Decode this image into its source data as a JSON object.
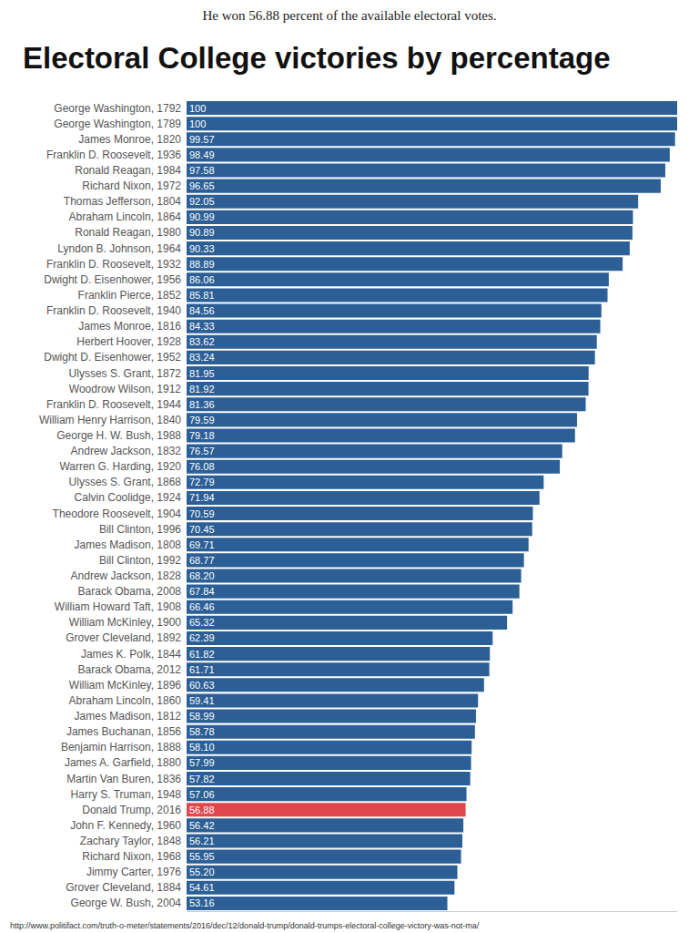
{
  "chart_data": {
    "type": "bar",
    "title": "Electoral College victories by percentage",
    "annotations": [
      "He won 56.88 percent of the available electoral votes.",
      "http://www.politifact.com/truth-o-meter/statements/2016/dec/12/donald-trump/donald-trumps-electoral-college-victory-was-not-ma/"
    ],
    "orientation": "horizontal",
    "categories": [
      "George Washington, 1792",
      "George Washington, 1789",
      "James Monroe, 1820",
      "Franklin D. Roosevelt, 1936",
      "Ronald Reagan, 1984",
      "Richard Nixon, 1972",
      "Thomas Jefferson, 1804",
      "Abraham Lincoln, 1864",
      "Ronald Reagan, 1980",
      "Lyndon B. Johnson, 1964",
      "Franklin D. Roosevelt, 1932",
      "Dwight D. Eisenhower, 1956",
      "Franklin Pierce, 1852",
      "Franklin D. Roosevelt, 1940",
      "James Monroe, 1816",
      "Herbert Hoover, 1928",
      "Dwight D. Eisenhower, 1952",
      "Ulysses S. Grant, 1872",
      "Woodrow Wilson, 1912",
      "Franklin D. Roosevelt, 1944",
      "William Henry Harrison, 1840",
      "George H. W. Bush, 1988",
      "Andrew Jackson, 1832",
      "Warren G. Harding, 1920",
      "Ulysses S. Grant, 1868",
      "Calvin Coolidge, 1924",
      "Theodore Roosevelt, 1904",
      "Bill Clinton, 1996",
      "James Madison, 1808",
      "Bill Clinton, 1992",
      "Andrew Jackson, 1828",
      "Barack Obama, 2008",
      "William Howard Taft, 1908",
      "William McKinley, 1900",
      "Grover Cleveland, 1892",
      "James K. Polk, 1844",
      "Barack Obama, 2012",
      "William McKinley, 1896",
      "Abraham Lincoln, 1860",
      "James Madison, 1812",
      "James Buchanan, 1856",
      "Benjamin Harrison, 1888",
      "James A. Garfield, 1880",
      "Martin Van Buren, 1836",
      "Harry S. Truman, 1948",
      "Donald Trump, 2016",
      "John F. Kennedy, 1960",
      "Zachary Taylor, 1848",
      "Richard Nixon, 1968",
      "Jimmy Carter, 1976",
      "Grover Cleveland, 1884",
      "George W. Bush, 2004"
    ],
    "values": [
      100,
      100,
      99.57,
      98.49,
      97.58,
      96.65,
      92.05,
      90.99,
      90.89,
      90.33,
      88.89,
      86.06,
      85.81,
      84.56,
      84.33,
      83.62,
      83.24,
      81.95,
      81.92,
      81.36,
      79.59,
      79.18,
      76.57,
      76.08,
      72.79,
      71.94,
      70.59,
      70.45,
      69.71,
      68.77,
      68.2,
      67.84,
      66.46,
      65.32,
      62.39,
      61.82,
      61.71,
      60.63,
      59.41,
      58.99,
      58.78,
      58.1,
      57.99,
      57.82,
      57.06,
      56.88,
      56.42,
      56.21,
      55.95,
      55.2,
      54.61,
      53.16
    ],
    "value_labels": [
      "100",
      "100",
      "99.57",
      "98.49",
      "97.58",
      "96.65",
      "92.05",
      "90.99",
      "90.89",
      "90.33",
      "88.89",
      "86.06",
      "85.81",
      "84.56",
      "84.33",
      "83.62",
      "83.24",
      "81.95",
      "81.92",
      "81.36",
      "79.59",
      "79.18",
      "76.57",
      "76.08",
      "72.79",
      "71.94",
      "70.59",
      "70.45",
      "69.71",
      "68.77",
      "68.20",
      "67.84",
      "66.46",
      "65.32",
      "62.39",
      "61.82",
      "61.71",
      "60.63",
      "59.41",
      "58.99",
      "58.78",
      "58.10",
      "57.99",
      "57.82",
      "57.06",
      "56.88",
      "56.42",
      "56.21",
      "55.95",
      "55.20",
      "54.61",
      "53.16"
    ],
    "colors": [
      "#2c5f96",
      "#2c5f96",
      "#2c5f96",
      "#2c5f96",
      "#2c5f96",
      "#2c5f96",
      "#2c5f96",
      "#2c5f96",
      "#2c5f96",
      "#2c5f96",
      "#2c5f96",
      "#2c5f96",
      "#2c5f96",
      "#2c5f96",
      "#2c5f96",
      "#2c5f96",
      "#2c5f96",
      "#2c5f96",
      "#2c5f96",
      "#2c5f96",
      "#2c5f96",
      "#2c5f96",
      "#2c5f96",
      "#2c5f96",
      "#2c5f96",
      "#2c5f96",
      "#2c5f96",
      "#2c5f96",
      "#2c5f96",
      "#2c5f96",
      "#2c5f96",
      "#2c5f96",
      "#2c5f96",
      "#2c5f96",
      "#2c5f96",
      "#2c5f96",
      "#2c5f96",
      "#2c5f96",
      "#2c5f96",
      "#2c5f96",
      "#2c5f96",
      "#2c5f96",
      "#2c5f96",
      "#2c5f96",
      "#2c5f96",
      "#e0474c",
      "#2c5f96",
      "#2c5f96",
      "#2c5f96",
      "#2c5f96",
      "#2c5f96",
      "#2c5f96"
    ],
    "xlim": [
      0,
      100
    ],
    "grid": false,
    "data_labels": true,
    "tick_labels": "y"
  }
}
